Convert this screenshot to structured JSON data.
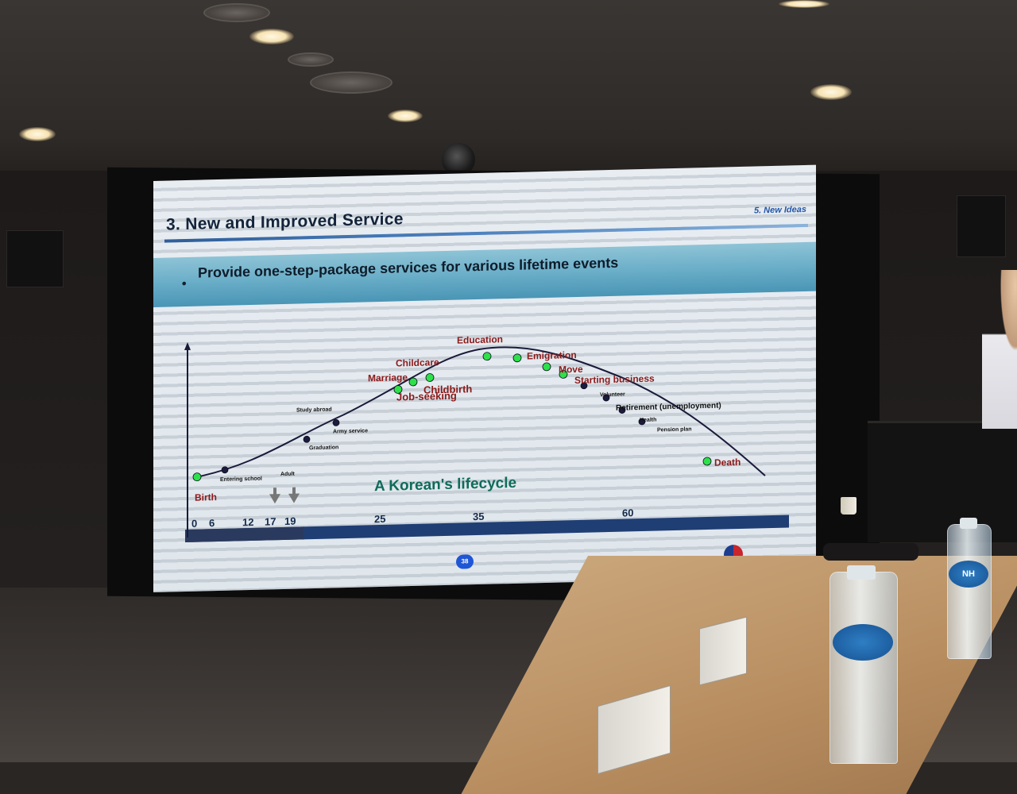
{
  "slide": {
    "title": "3. New and Improved Service",
    "section": "5. New Ideas",
    "bullet": "Provide one-step-package services for various lifetime events",
    "page_number": "38"
  },
  "chart_data": {
    "type": "line",
    "title": "A Korean's lifecycle",
    "x_ticks": [
      "0",
      "6",
      "12",
      "17",
      "19",
      "25",
      "35",
      "60"
    ],
    "events": [
      {
        "label": "Birth",
        "color": "#8b1a1a"
      },
      {
        "label": "Entering school",
        "color": "#111111"
      },
      {
        "label": "Adult",
        "color": "#111111"
      },
      {
        "label": "Graduation",
        "color": "#111111"
      },
      {
        "label": "Army service",
        "color": "#111111"
      },
      {
        "label": "Study abroad",
        "color": "#111111"
      },
      {
        "label": "Job-seeking",
        "color": "#8b1a1a"
      },
      {
        "label": "Marriage",
        "color": "#8b1a1a"
      },
      {
        "label": "Childcare",
        "color": "#8b1a1a"
      },
      {
        "label": "Childbirth",
        "color": "#8b1a1a"
      },
      {
        "label": "Education",
        "color": "#8b1a1a"
      },
      {
        "label": "Emigration",
        "color": "#8b1a1a"
      },
      {
        "label": "Move",
        "color": "#8b1a1a"
      },
      {
        "label": "Starting business",
        "color": "#8b1a1a"
      },
      {
        "label": "Volunteer",
        "color": "#111111"
      },
      {
        "label": "Retirement (unemployment)",
        "color": "#111111"
      },
      {
        "label": "Health",
        "color": "#111111"
      },
      {
        "label": "Pension plan",
        "color": "#111111"
      },
      {
        "label": "Death",
        "color": "#8b1a1a"
      }
    ],
    "colors": {
      "curve": "#1a1a3a",
      "green_point": "#2ee04a",
      "dark_point": "#1b1b3d",
      "axis_bar": "#1f3e74",
      "caption": "#0f6b5a"
    }
  },
  "room": {
    "bottle_label": "NH"
  }
}
